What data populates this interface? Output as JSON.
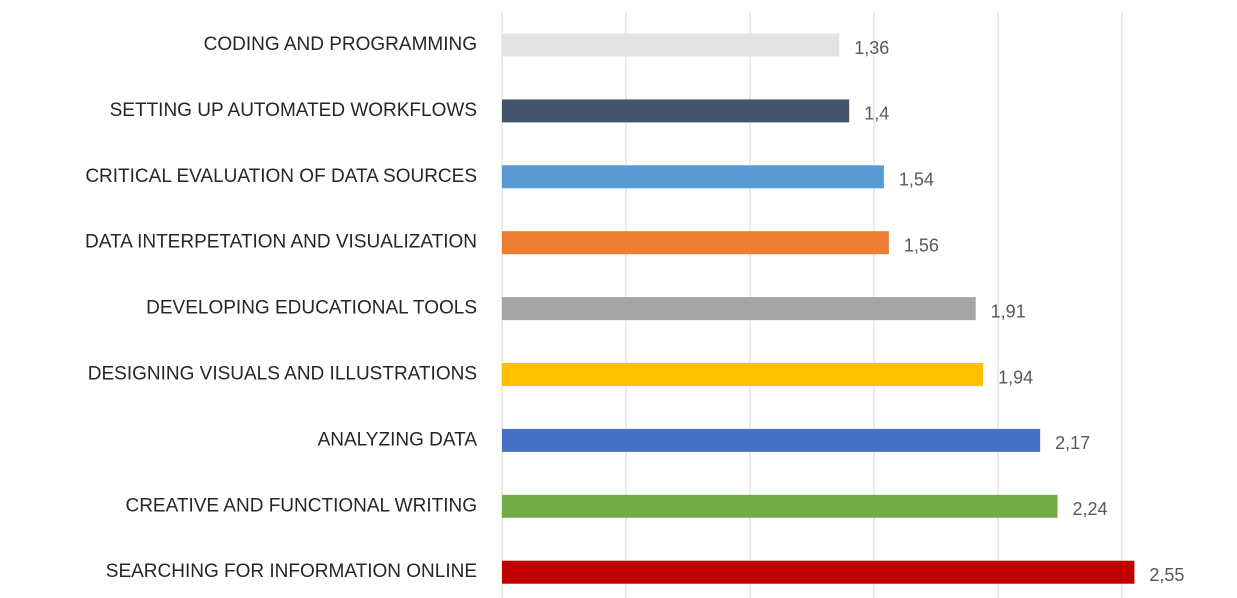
{
  "chart_data": {
    "type": "barh",
    "categories": [
      "CODING AND PROGRAMMING",
      "SETTING UP AUTOMATED WORKFLOWS",
      "CRITICAL EVALUATION OF DATA SOURCES",
      "DATA INTERPETATION AND VISUALIZATION",
      "DEVELOPING EDUCATIONAL TOOLS",
      "DESIGNING VISUALS AND ILLUSTRATIONS",
      "ANALYZING DATA",
      "CREATIVE AND FUNCTIONAL WRITING",
      "SEARCHING FOR INFORMATION ONLINE"
    ],
    "values": [
      1.36,
      1.4,
      1.54,
      1.56,
      1.91,
      1.94,
      2.17,
      2.24,
      2.55
    ],
    "value_labels": [
      "1,36",
      "1,4",
      "1,54",
      "1,56",
      "1,91",
      "1,94",
      "2,17",
      "2,24",
      "2,55"
    ],
    "colors": [
      "#e3e3e3",
      "#44546a",
      "#5b9bd5",
      "#ed7d31",
      "#a5a5a5",
      "#ffc000",
      "#4472c4",
      "#70ad47",
      "#c00000"
    ],
    "xlim": [
      0,
      2.5
    ],
    "xticks": [
      0,
      0.5,
      1,
      1.5,
      2,
      2.5
    ],
    "grid": true
  }
}
